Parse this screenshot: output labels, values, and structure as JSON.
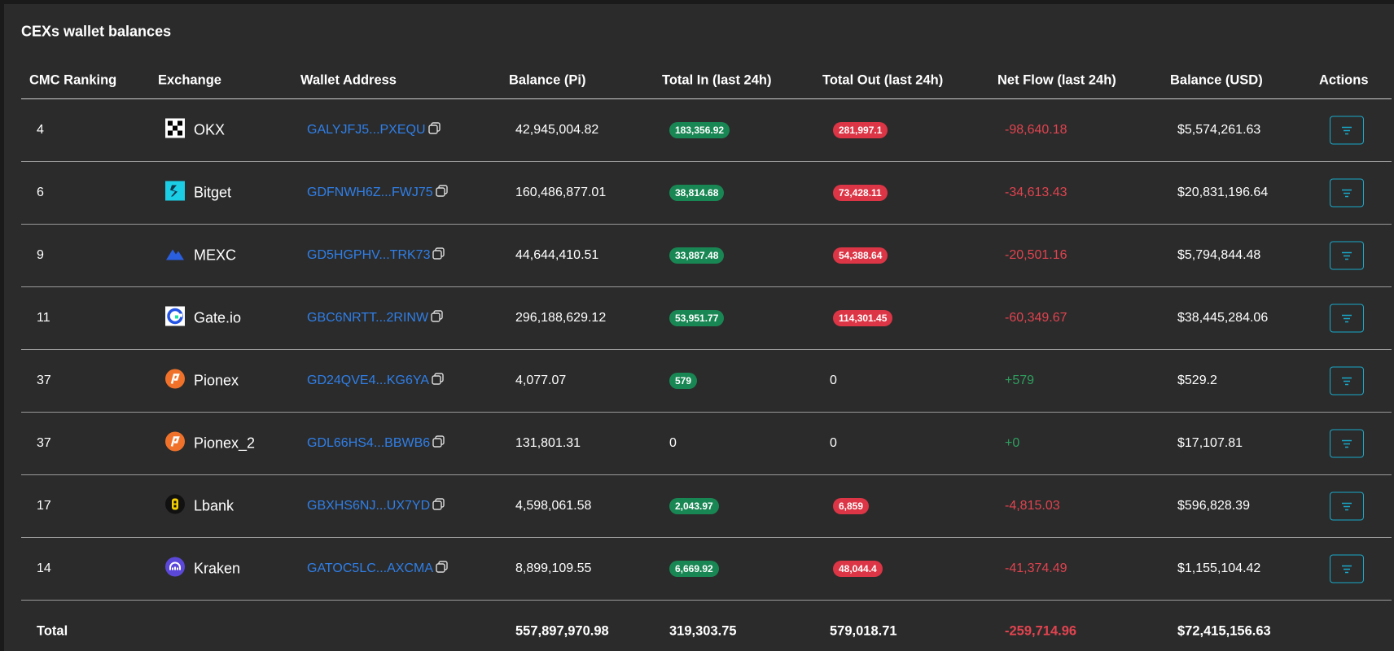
{
  "title": "CEXs wallet balances",
  "table": {
    "headers": [
      "CMC Ranking",
      "Exchange",
      "Wallet Address",
      "Balance (Pi)",
      "Total In (last 24h)",
      "Total Out (last 24h)",
      "Net Flow (last 24h)",
      "Balance (USD)",
      "Actions"
    ],
    "rows": [
      [
        "4",
        "OKX",
        "GALYJFJ5...PXEQU",
        "42,945,004.82",
        "183,356.92",
        "281,997.1",
        "-98,640.18",
        "$5,574,261.63"
      ],
      [
        "6",
        "Bitget",
        "GDFNWH6Z...FWJ75",
        "160,486,877.01",
        "38,814.68",
        "73,428.11",
        "-34,613.43",
        "$20,831,196.64"
      ],
      [
        "9",
        "MEXC",
        "GD5HGPHV...TRK73",
        "44,644,410.51",
        "33,887.48",
        "54,388.64",
        "-20,501.16",
        "$5,794,844.48"
      ],
      [
        "11",
        "Gate.io",
        "GBC6NRTT...2RINW",
        "296,188,629.12",
        "53,951.77",
        "114,301.45",
        "-60,349.67",
        "$38,445,284.06"
      ],
      [
        "37",
        "Pionex",
        "GD24QVE4...KG6YA",
        "4,077.07",
        "579",
        "0",
        "+579",
        "$529.2"
      ],
      [
        "37",
        "Pionex_2",
        "GDL66HS4...BBWB6",
        "131,801.31",
        "0",
        "0",
        "+0",
        "$17,107.81"
      ],
      [
        "17",
        "Lbank",
        "GBXHS6NJ...UX7YD",
        "4,598,061.58",
        "2,043.97",
        "6,859",
        "-4,815.03",
        "$596,828.39"
      ],
      [
        "14",
        "Kraken",
        "GATOC5LC...AXCMA",
        "8,899,109.55",
        "6,669.92",
        "48,044.4",
        "-41,374.49",
        "$1,155,104.42"
      ]
    ],
    "total": [
      "Total",
      "557,897,970.98",
      "319,303.75",
      "579,018.71",
      "-259,714.96",
      "$72,415,156.63"
    ]
  }
}
